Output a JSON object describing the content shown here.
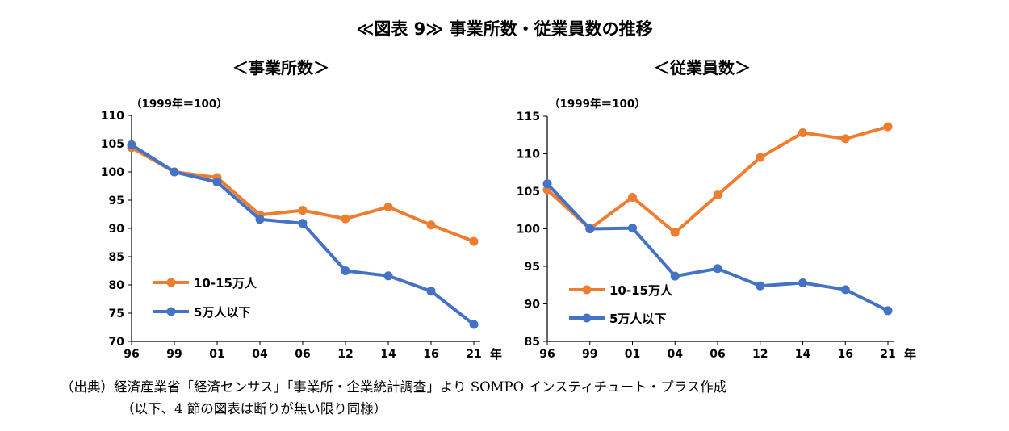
{
  "title": "≪図表 9≫ 事業所数・従業員数の推移",
  "source": {
    "line1": "（出典）経済産業省「経済センサス」「事業所・企業統計調査」より SOMPO インスティチュート・プラス作成",
    "line2": "（以下、4 節の図表は断りが無い限り同様）"
  },
  "colors": {
    "orange": "#ED7D31",
    "blue": "#4472C4"
  },
  "chart_data": [
    {
      "type": "line",
      "title": "＜事業所数＞",
      "unit_note": "（1999年＝100）",
      "xlabel": "年",
      "ylabel": "",
      "categories": [
        "96",
        "99",
        "01",
        "04",
        "06",
        "12",
        "14",
        "16",
        "21"
      ],
      "ylim": [
        70,
        110
      ],
      "yticks": [
        70,
        75,
        80,
        85,
        90,
        95,
        100,
        105,
        110
      ],
      "grid": false,
      "legend_position": "bottom-left",
      "series": [
        {
          "name": "10-15万人",
          "color": "#ED7D31",
          "values": [
            104.3,
            100.0,
            99.0,
            92.4,
            93.2,
            91.7,
            93.8,
            90.6,
            87.7
          ]
        },
        {
          "name": "5万人以下",
          "color": "#4472C4",
          "values": [
            104.8,
            100.0,
            98.2,
            91.6,
            90.9,
            82.5,
            81.6,
            78.9,
            73.0
          ]
        }
      ]
    },
    {
      "type": "line",
      "title": "＜従業員数＞",
      "unit_note": "（1999年＝100）",
      "xlabel": "年",
      "ylabel": "",
      "categories": [
        "96",
        "99",
        "01",
        "04",
        "06",
        "12",
        "14",
        "16",
        "21"
      ],
      "ylim": [
        85,
        115
      ],
      "yticks": [
        85,
        90,
        95,
        100,
        105,
        110,
        115
      ],
      "grid": false,
      "legend_position": "bottom-left",
      "series": [
        {
          "name": "10-15万人",
          "color": "#ED7D31",
          "values": [
            105.2,
            100.0,
            104.2,
            99.5,
            104.5,
            109.5,
            112.8,
            112.0,
            113.6
          ]
        },
        {
          "name": "5万人以下",
          "color": "#4472C4",
          "values": [
            106.0,
            100.0,
            100.1,
            93.7,
            94.7,
            92.4,
            92.8,
            91.9,
            89.1
          ]
        }
      ]
    }
  ]
}
